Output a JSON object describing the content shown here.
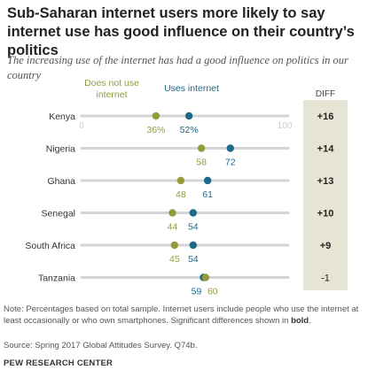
{
  "header": {
    "title": "Sub-Saharan internet users more likely to say internet use has good influence on their country’s politics",
    "subtitle": "The increasing use of the internet has had a good influence on politics in our country"
  },
  "chart_data": {
    "type": "dot",
    "categories": [
      "Kenya",
      "Nigeria",
      "Ghana",
      "Senegal",
      "South Africa",
      "Tanzania"
    ],
    "series": [
      {
        "name": "Does not use internet",
        "values": [
          36,
          58,
          48,
          44,
          45,
          60
        ],
        "color": "#939b3b"
      },
      {
        "name": "Uses internet",
        "values": [
          52,
          72,
          61,
          54,
          54,
          59
        ],
        "color": "#1b6a8a"
      }
    ],
    "legend": [
      "Does not use internet",
      "Uses internet"
    ],
    "value_labels_first_row": [
      "36%",
      "52%"
    ],
    "diff": {
      "header": "DIFF",
      "values": [
        "+16",
        "+14",
        "+13",
        "+10",
        "+9",
        "-1"
      ]
    },
    "axis_ticks": [
      "0",
      "100"
    ],
    "xlim": [
      0,
      100
    ],
    "grid": false
  },
  "footer": {
    "note_prefix": "Note: Percentages based on total sample. Internet users include people who use the internet at least occasionally or who own smartphones. Significant differences shown in ",
    "note_bold": "bold",
    "note_suffix": ".",
    "source": "Source: Spring 2017 Global Attitudes Survey. Q74b.",
    "brand": "PEW RESEARCH CENTER"
  }
}
